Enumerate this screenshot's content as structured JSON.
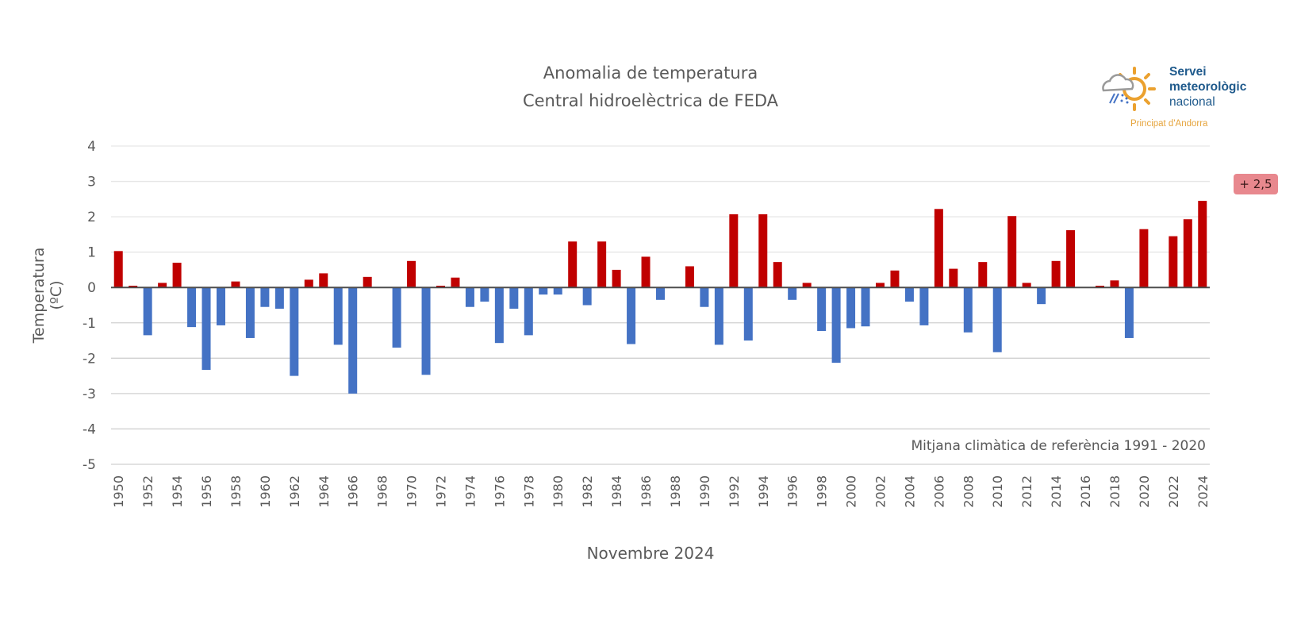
{
  "chart_data": {
    "type": "bar",
    "title": "Anomalia de temperatura",
    "subtitle": "Central hidroelèctrica de FEDA",
    "xlabel": "Novembre 2024",
    "ylabel": "Temperatura (ºC)",
    "ylim": [
      -5,
      4
    ],
    "yticks": [
      4,
      3,
      2,
      1,
      0,
      -1,
      -2,
      -3,
      -4,
      -5
    ],
    "grid": true,
    "positive_color": "#c00000",
    "negative_color": "#4472c4",
    "categories": [
      1950,
      1951,
      1952,
      1953,
      1954,
      1955,
      1956,
      1957,
      1958,
      1959,
      1960,
      1961,
      1962,
      1963,
      1964,
      1965,
      1966,
      1967,
      1968,
      1969,
      1970,
      1971,
      1972,
      1973,
      1974,
      1975,
      1976,
      1977,
      1978,
      1979,
      1980,
      1981,
      1982,
      1983,
      1984,
      1985,
      1986,
      1987,
      1988,
      1989,
      1990,
      1991,
      1992,
      1993,
      1994,
      1995,
      1996,
      1997,
      1998,
      1999,
      2000,
      2001,
      2002,
      2003,
      2004,
      2005,
      2006,
      2007,
      2008,
      2009,
      2010,
      2011,
      2012,
      2013,
      2014,
      2015,
      2016,
      2017,
      2018,
      2019,
      2020,
      2021,
      2022,
      2023,
      2024
    ],
    "values": [
      1.03,
      0.05,
      -1.35,
      0.13,
      0.7,
      -1.12,
      -2.33,
      -1.07,
      0.17,
      -1.43,
      -0.55,
      -0.6,
      -2.5,
      0.22,
      0.4,
      -1.62,
      -3.0,
      0.3,
      0,
      -1.7,
      0.75,
      -2.47,
      0.05,
      0.28,
      -0.55,
      -0.4,
      -1.57,
      -0.6,
      -1.35,
      -0.2,
      -0.2,
      1.3,
      -0.5,
      1.3,
      0.5,
      -1.6,
      0.87,
      -0.35,
      0,
      0.6,
      -0.55,
      -1.62,
      2.07,
      -1.5,
      2.07,
      0.72,
      -0.35,
      0.13,
      -1.23,
      -2.13,
      -1.15,
      -1.1,
      0.13,
      0.48,
      -0.4,
      -1.07,
      2.22,
      0.53,
      -1.27,
      0.72,
      -1.83,
      2.02,
      0.13,
      -0.47,
      0.75,
      1.62,
      0,
      0.05,
      0.2,
      -1.43,
      1.65,
      0,
      1.45,
      1.93,
      2.45
    ],
    "annotation": "+ 2,5",
    "annotation_color": "#e8888e",
    "note": "Mitjana climàtica de referència 1991 - 2020"
  },
  "logo": {
    "line1": "Servei",
    "line2": "meteorològic",
    "line3": "nacional",
    "sub": "Principat d'Andorra"
  }
}
